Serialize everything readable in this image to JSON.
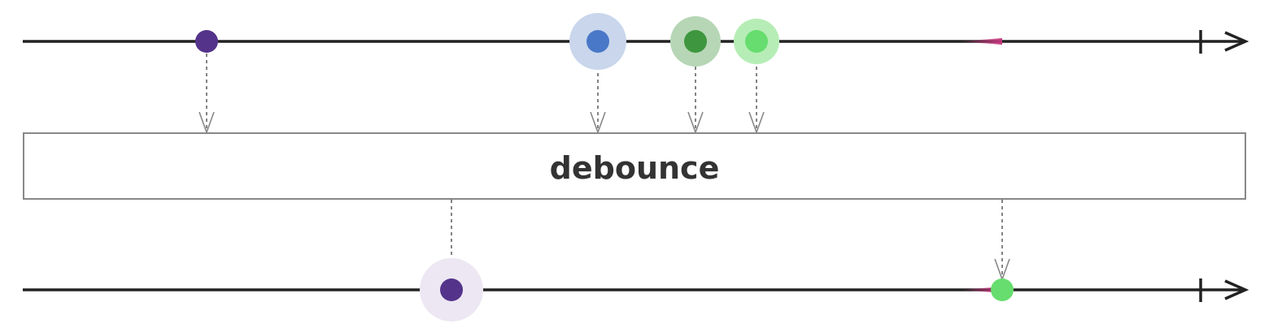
{
  "operator": {
    "label": "debounce"
  },
  "colors": {
    "timeline": "#222222",
    "arrow": "#888888",
    "box_border": "#888888",
    "tail": "#c2357a"
  },
  "source_stream": {
    "events": [
      {
        "t": 254,
        "color": "#54338a",
        "halo": null,
        "label": "purple-marble"
      },
      {
        "t": 735,
        "color": "#4a78c8",
        "halo": "#c9d6ec",
        "label": "blue-marble"
      },
      {
        "t": 855,
        "color": "#3e963e",
        "halo": "#b6d6b5",
        "label": "dark-green-marble"
      },
      {
        "t": 930,
        "color": "#66dd6e",
        "halo": "#b6edb6",
        "label": "light-green-marble"
      }
    ],
    "tail_end": 1232,
    "complete_at": 1476
  },
  "result_stream": {
    "events": [
      {
        "t": 555,
        "color": "#54338a",
        "halo": "#ece7f2",
        "label": "purple-marble"
      },
      {
        "t": 1232,
        "color": "#66dd6e",
        "halo": null,
        "label": "light-green-marble"
      }
    ],
    "tail_end": 1232,
    "complete_at": 1476
  }
}
